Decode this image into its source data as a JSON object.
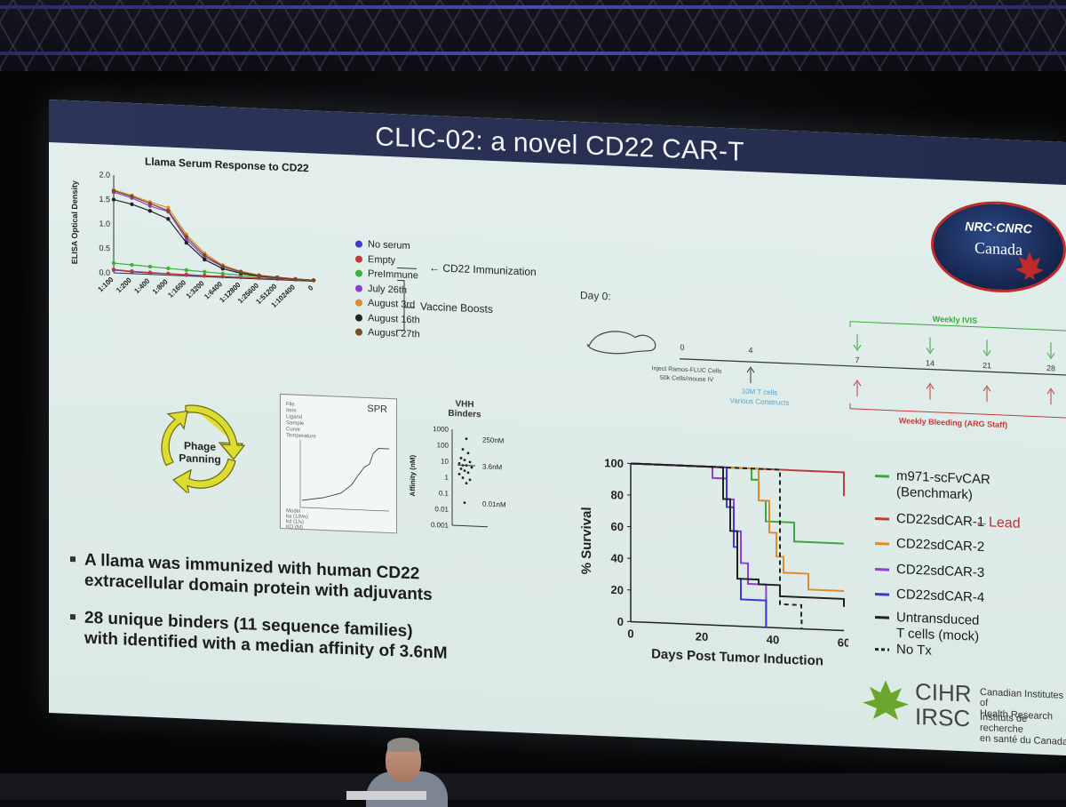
{
  "slide": {
    "title": "CLIC-02: a novel CD22 CAR-T"
  },
  "elisa_chart": {
    "title": "Llama Serum Response to CD22",
    "ylabel": "ELISA\nOptical Density",
    "y_ticks": [
      "2.0",
      "1.5",
      "1.0",
      "0.5",
      "0.0"
    ],
    "x_ticks": [
      "1:100",
      "1:200",
      "1:400",
      "1:800",
      "1:1600",
      "1:3200",
      "1:6400",
      "1:12800",
      "1:25600",
      "1:51200",
      "1:102400",
      "0"
    ],
    "legend": [
      {
        "name": "No serum",
        "color": "#3a3ad0"
      },
      {
        "name": "Empty",
        "color": "#c23b3b"
      },
      {
        "name": "PreImmune",
        "color": "#3fae3f"
      },
      {
        "name": "July 26th",
        "color": "#8b3fd6"
      },
      {
        "name": "August 3rd",
        "color": "#e08a2a"
      },
      {
        "name": "August 16th",
        "color": "#222222"
      },
      {
        "name": "August 27th",
        "color": "#7a4a2a"
      }
    ],
    "annotation_immunization": "CD22 Immunization",
    "annotation_boosts": "Vaccine Boosts"
  },
  "chart_data": [
    {
      "type": "line",
      "title": "Llama Serum Response to CD22",
      "ylabel": "ELISA Optical Density",
      "ylim": [
        0,
        2.0
      ],
      "categories": [
        "1:100",
        "1:200",
        "1:400",
        "1:800",
        "1:1600",
        "1:3200",
        "1:6400",
        "1:12800",
        "1:25600",
        "1:51200",
        "1:102400",
        "0"
      ],
      "series": [
        {
          "name": "No serum",
          "color": "#3a3ad0",
          "values": [
            0.06,
            0.04,
            0.03,
            0.03,
            0.02,
            0.02,
            0.02,
            0.02,
            0.02,
            0.02,
            0.02,
            0.02
          ]
        },
        {
          "name": "Empty",
          "color": "#c23b3b",
          "values": [
            0.07,
            0.05,
            0.04,
            0.03,
            0.03,
            0.02,
            0.02,
            0.02,
            0.02,
            0.02,
            0.02,
            0.02
          ]
        },
        {
          "name": "PreImmune",
          "color": "#3fae3f",
          "values": [
            0.2,
            0.18,
            0.16,
            0.14,
            0.12,
            0.1,
            0.08,
            0.06,
            0.05,
            0.04,
            0.03,
            0.02
          ]
        },
        {
          "name": "July 26th",
          "color": "#8b3fd6",
          "values": [
            1.65,
            1.55,
            1.4,
            1.3,
            0.75,
            0.4,
            0.22,
            0.12,
            0.07,
            0.05,
            0.03,
            0.02
          ]
        },
        {
          "name": "August 3rd",
          "color": "#e08a2a",
          "values": [
            1.7,
            1.6,
            1.48,
            1.38,
            0.85,
            0.48,
            0.25,
            0.14,
            0.08,
            0.05,
            0.03,
            0.02
          ]
        },
        {
          "name": "August 16th",
          "color": "#222222",
          "values": [
            1.5,
            1.42,
            1.3,
            1.15,
            0.68,
            0.35,
            0.18,
            0.1,
            0.06,
            0.04,
            0.03,
            0.02
          ]
        },
        {
          "name": "August 27th",
          "color": "#7a4a2a",
          "values": [
            1.68,
            1.58,
            1.45,
            1.32,
            0.8,
            0.44,
            0.23,
            0.13,
            0.07,
            0.05,
            0.03,
            0.02
          ]
        }
      ]
    },
    {
      "type": "line",
      "xlabel": "Days Post Tumor Induction",
      "ylabel": "% Survival",
      "xlim": [
        0,
        60
      ],
      "ylim": [
        0,
        100
      ],
      "x_ticks": [
        "0",
        "20",
        "40",
        "60"
      ],
      "y_ticks": [
        "100",
        "80",
        "60",
        "40",
        "20",
        "0"
      ],
      "series": [
        {
          "name": "m971-scFvCAR (Benchmark)",
          "color": "#3aa83a",
          "dash": false,
          "x": [
            0,
            31,
            34,
            36,
            38,
            42,
            46,
            60
          ],
          "y": [
            100,
            100,
            93,
            80,
            67,
            67,
            55,
            55
          ]
        },
        {
          "name": "CD22sdCAR-1",
          "color": "#c23b3b",
          "dash": false,
          "x": [
            0,
            43,
            60
          ],
          "y": [
            100,
            100,
            85
          ]
        },
        {
          "name": "CD22sdCAR-2",
          "color": "#e08a2a",
          "dash": false,
          "x": [
            0,
            32,
            36,
            39,
            41,
            43,
            50,
            60
          ],
          "y": [
            100,
            100,
            80,
            60,
            45,
            35,
            25,
            25
          ]
        },
        {
          "name": "CD22sdCAR-3",
          "color": "#8b3fd6",
          "dash": false,
          "x": [
            0,
            16,
            23,
            27,
            29,
            31,
            33,
            38,
            38.1
          ],
          "y": [
            100,
            100,
            93,
            80,
            60,
            40,
            27,
            27,
            0
          ]
        },
        {
          "name": "CD22sdCAR-4",
          "color": "#3a3ad0",
          "dash": false,
          "x": [
            0,
            25,
            27,
            29,
            30,
            31,
            38,
            38.1
          ],
          "y": [
            100,
            100,
            75,
            50,
            30,
            17,
            17,
            0
          ]
        },
        {
          "name": "Untransduced T cells (mock)",
          "color": "#222222",
          "dash": false,
          "x": [
            0,
            23,
            26,
            28,
            30,
            36,
            42,
            60
          ],
          "y": [
            100,
            100,
            80,
            60,
            30,
            27,
            20,
            15
          ]
        },
        {
          "name": "No Tx",
          "color": "#222222",
          "dash": true,
          "x": [
            0,
            38,
            42,
            48,
            48.1
          ],
          "y": [
            100,
            100,
            15,
            8,
            0
          ]
        }
      ]
    }
  ],
  "spr": {
    "title": "SPR",
    "fields": [
      "File",
      "Item",
      "Ligand",
      "Sample",
      "Curve",
      "Temperature",
      "Model",
      "ka (1/Ms)",
      "kd (1/s)",
      "KD (M)"
    ]
  },
  "vhh": {
    "title": "VHH\nBinders",
    "ylabel": "Affinity (nM)",
    "y_ticks": [
      "1000",
      "100",
      "10",
      "1",
      "0.1",
      "0.01",
      "0.001"
    ],
    "labels": [
      "250nM",
      "3.6nM",
      "0.01nM"
    ]
  },
  "phage": {
    "label": "Phage\nPanning"
  },
  "timeline": {
    "day0": "Day 0:",
    "weekly_ivis": "Weekly IVIS",
    "weekly_bleeding": "Weekly Bleeding (ARG Staff)",
    "inject_note": "Inject Ramos-FLUC Cells\n50k Cells/mouse IV",
    "tcell_note": "10M T cells\nVarious Constructs",
    "ticks": [
      "0",
      "4",
      "7",
      "14",
      "21",
      "28"
    ]
  },
  "survival_legend": [
    {
      "label": "m971-scFvCAR\n(Benchmark)",
      "color": "#3aa83a",
      "dash": false
    },
    {
      "label": "CD22sdCAR-1",
      "color": "#c23b3b",
      "dash": false
    },
    {
      "label": "CD22sdCAR-2",
      "color": "#e08a2a",
      "dash": false
    },
    {
      "label": "CD22sdCAR-3",
      "color": "#8b3fd6",
      "dash": false
    },
    {
      "label": "CD22sdCAR-4",
      "color": "#3a3ad0",
      "dash": false
    },
    {
      "label": "Untransduced\nT cells (mock)",
      "color": "#222222",
      "dash": false
    },
    {
      "label": "No Tx",
      "color": "#222222",
      "dash": true
    }
  ],
  "lead_label": "Lead",
  "bullets": [
    "A llama was immunized with human CD22\nextracellular domain protein with adjuvants",
    "28 unique binders (11 sequence families)\nwith identified with a median affinity of 3.6nM"
  ],
  "nrc_logo": {
    "text1": "NRC·CNRC",
    "text2": "Canada"
  },
  "cihr": {
    "acronym1": "CIHR",
    "acronym2": "IRSC",
    "en": "Canadian Institutes of\nHealth Research",
    "fr": "Instituts de recherche\nen santé du Canada"
  }
}
